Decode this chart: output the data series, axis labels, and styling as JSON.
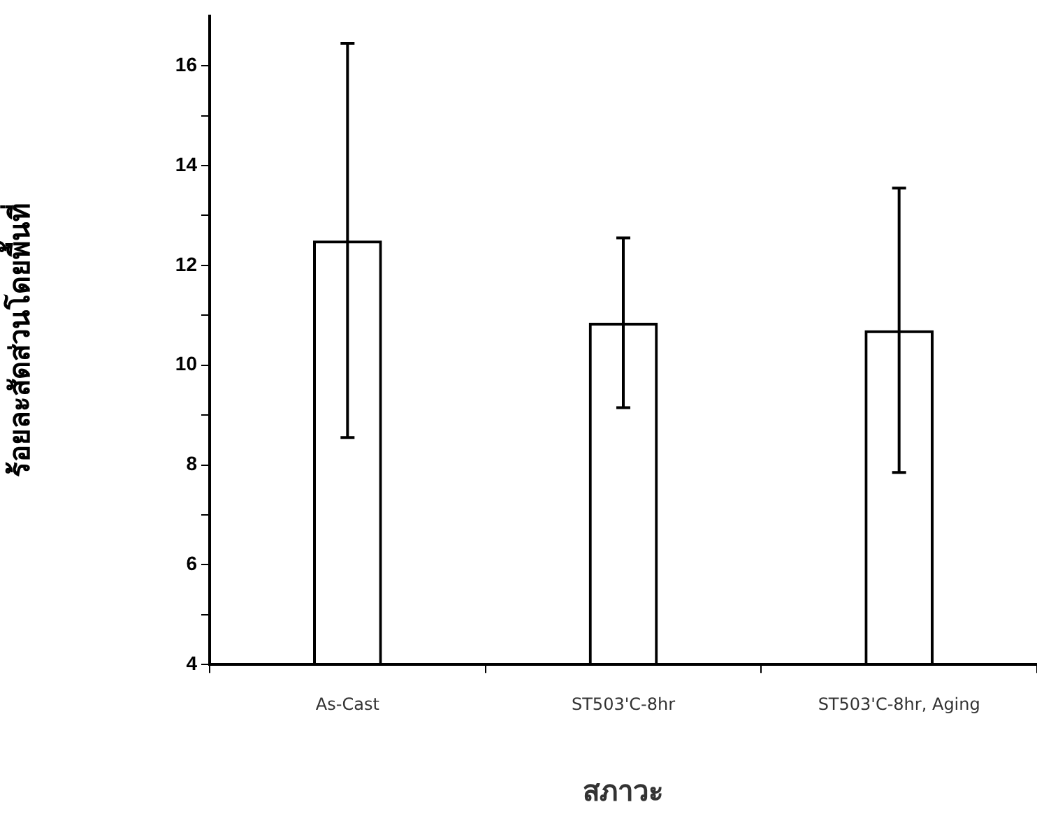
{
  "chart_data": {
    "type": "bar",
    "xlabel": "สภาวะ",
    "ylabel": "ร้อยละสัดส่วนโดยพื้นที่",
    "categories": [
      "As-Cast",
      "ST503'C-8hr",
      "ST503'C-8hr, Aging"
    ],
    "values": [
      12.5,
      10.85,
      10.7
    ],
    "errors": [
      3.95,
      1.7,
      2.85
    ],
    "color": "#000000",
    "ylim": [
      4,
      17
    ],
    "yticks": [
      4,
      {
        "value": 5,
        "label": null
      },
      6,
      {
        "value": 7,
        "label": null
      },
      8,
      {
        "value": 9,
        "label": null
      },
      10,
      {
        "value": 11,
        "label": null
      },
      12,
      {
        "value": 13,
        "label": null
      },
      14,
      {
        "value": 15,
        "label": null
      },
      16
    ],
    "grid": false,
    "legend": false
  }
}
